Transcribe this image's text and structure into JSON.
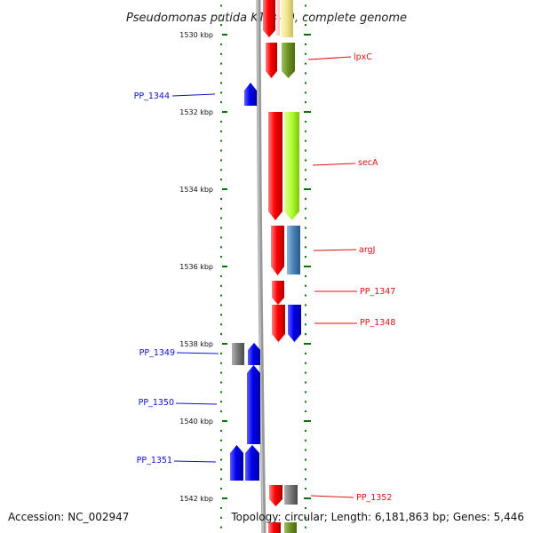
{
  "title": "Pseudomonas putida KT2440, complete genome",
  "footer": {
    "accession": "Accession: NC_002947",
    "topology": "Topology: circular; Length: 6,181,863 bp; Genes: 5,446"
  },
  "axis": {
    "unit": "kbp",
    "ticks": [
      {
        "label": "1530 kbp",
        "kbp": 1530
      },
      {
        "label": "1532 kbp",
        "kbp": 1532
      },
      {
        "label": "1534 kbp",
        "kbp": 1534
      },
      {
        "label": "1536 kbp",
        "kbp": 1536
      },
      {
        "label": "1538 kbp",
        "kbp": 1538
      },
      {
        "label": "1540 kbp",
        "kbp": 1540
      },
      {
        "label": "1542 kbp",
        "kbp": 1542
      }
    ]
  },
  "colors": {
    "forward_strand": "#ff0000",
    "reverse_strand": "#0000ee",
    "backbone": "#888888",
    "tick": "#007700",
    "label_left": "#1010cc",
    "label_right": "#dd1111",
    "cat_olive": "#6b8e23",
    "cat_lime": "#adff2f",
    "cat_steelblue": "#4682b4",
    "cat_blue": "#0000ee",
    "cat_gray": "#777777",
    "cat_khaki": "#f0e68c"
  },
  "gene_labels": {
    "left": [
      {
        "id": "pp1344",
        "text": "PP_1344"
      },
      {
        "id": "pp1349",
        "text": "PP_1349"
      },
      {
        "id": "pp1350",
        "text": "PP_1350"
      },
      {
        "id": "pp1351",
        "text": "PP_1351"
      }
    ],
    "right": [
      {
        "id": "lpxc",
        "text": "lpxC"
      },
      {
        "id": "seca",
        "text": "secA"
      },
      {
        "id": "argj",
        "text": "argJ"
      },
      {
        "id": "pp1347",
        "text": "PP_1347"
      },
      {
        "id": "pp1348",
        "text": "PP_1348"
      },
      {
        "id": "pp1352",
        "text": "PP_1352"
      }
    ]
  }
}
